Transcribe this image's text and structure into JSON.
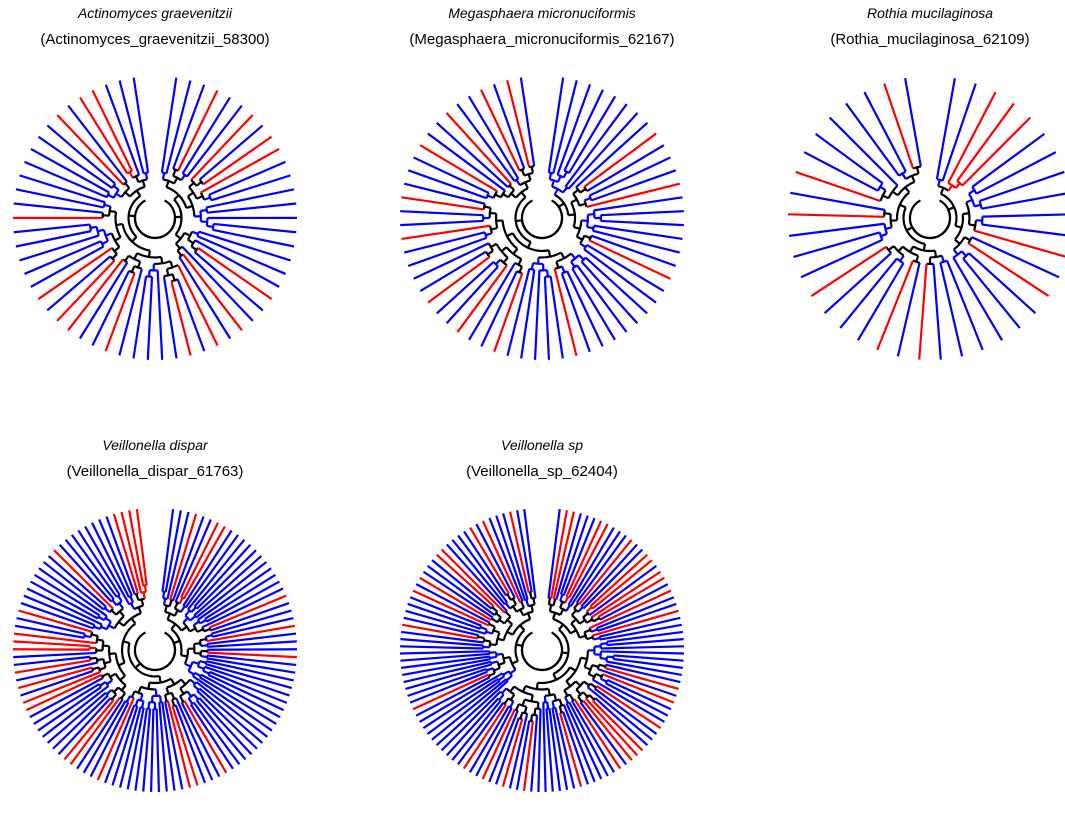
{
  "colors": {
    "blue": "#0000ff",
    "red": "#ff0000",
    "black": "#000000"
  },
  "panels": [
    {
      "title": "Actinomyces graevenitzii",
      "subtitle": "(Actinomyces_graevenitzii_58300)",
      "tips": 60,
      "seed": 11
    },
    {
      "title": "Megasphaera micronuciformis",
      "subtitle": "(Megasphaera_micronuciformis_62167)",
      "tips": 62,
      "seed": 23
    },
    {
      "title": "Rothia mucilaginosa",
      "subtitle": "(Rothia_mucilaginosa_62109)",
      "tips": 40,
      "seed": 37
    },
    {
      "title": "Veillonella dispar",
      "subtitle": "(Veillonella_dispar_61763)",
      "tips": 110,
      "seed": 41
    },
    {
      "title": "Veillonella sp",
      "subtitle": "(Veillonella_sp_62404)",
      "tips": 120,
      "seed": 53
    }
  ]
}
